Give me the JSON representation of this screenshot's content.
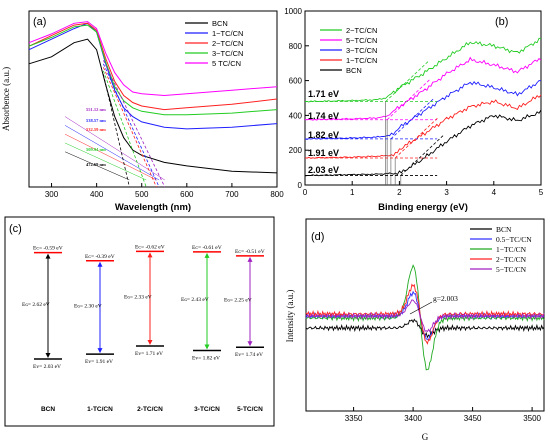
{
  "panels": {
    "a": {
      "label": "(a)",
      "xlabel": "Wavelength (nm)",
      "ylabel": "Absorbence (a.u.)",
      "x_ticks": [
        "300",
        "400",
        "500",
        "600",
        "700",
        "800"
      ],
      "legend": [
        "BCN",
        "1−TC/CN",
        "2−TC/CN",
        "3−TC/CN",
        "5  TC/CN"
      ],
      "annotations": [
        "551.12 nm",
        "538.57 nm",
        "532.59 nm",
        "509.94 nm",
        "472.69 nm"
      ]
    },
    "b": {
      "label": "(b)",
      "xlabel": "Binding energy (eV)",
      "x_ticks": [
        "0",
        "1",
        "2",
        "3",
        "4",
        "5"
      ],
      "y_ticks": [
        "0",
        "200",
        "400",
        "600",
        "800",
        "1000"
      ],
      "legend": [
        "2−TC/CN",
        "5−TC/CN",
        "3−TC/CN",
        "1−TC/CN",
        "BCN"
      ],
      "annotations": [
        "1.71 eV",
        "1.74 eV",
        "1.82 eV",
        "1.91 eV",
        "2.03 eV"
      ]
    },
    "c": {
      "label": "(c)",
      "samples": [
        {
          "name": "BCN",
          "ec": "Eᴄ= -0.59 eV",
          "eg": "Eɢ= 2.62 eV",
          "ev": "Eᴠ= 2.03 eV"
        },
        {
          "name": "1-TC/CN",
          "ec": "Eᴄ= -0.39 eV",
          "eg": "Eɢ= 2.30 eV",
          "ev": "Eᴠ= 1.91 eV"
        },
        {
          "name": "2-TC/CN",
          "ec": "Eᴄ= -0.62 eV",
          "eg": "Eɢ= 2.33 eV",
          "ev": "Eᴠ= 1.71 eV"
        },
        {
          "name": "3-TC/CN",
          "ec": "Eᴄ= -0.61 eV",
          "eg": "Eɢ= 2.43 eV",
          "ev": "Eᴠ= 1.82 eV"
        },
        {
          "name": "5-TC/CN",
          "ec": "Eᴄ= -0.51 eV",
          "eg": "Eɢ= 2.25 eV",
          "ev": "Eᴠ= 1.74 eV"
        }
      ]
    },
    "d": {
      "label": "(d)",
      "xlabel": "G",
      "ylabel": "Intensity (a.u.)",
      "x_ticks": [
        "3350",
        "3400",
        "3450",
        "3500"
      ],
      "legend": [
        "BCN",
        "0.5−TC/CN",
        "1−TC/CN",
        "2−TC/CN",
        "5−TC/CN"
      ],
      "annotation": "g=2.003"
    }
  },
  "colors": {
    "bcn": "#000000",
    "tc1": "#1f1fff",
    "tc2": "#ff2020",
    "tc3": "#22cc22",
    "tc5": "#a020c0",
    "tc5pink": "#ff00ff",
    "tc05": "#3030ff",
    "tc1g": "#22aa22"
  },
  "chart_data": [
    {
      "panel": "a",
      "type": "line",
      "xlabel": "Wavelength (nm)",
      "ylabel": "Absorbence (a.u.)",
      "xlim": [
        250,
        800
      ],
      "series": [
        {
          "name": "BCN",
          "x": [
            250,
            300,
            350,
            380,
            400,
            420,
            440,
            460,
            480,
            500,
            550,
            600,
            700,
            800
          ],
          "y": [
            0.7,
            0.74,
            0.82,
            0.84,
            0.78,
            0.58,
            0.4,
            0.28,
            0.21,
            0.18,
            0.14,
            0.12,
            0.09,
            0.08
          ]
        },
        {
          "name": "1−TC/CN",
          "x": [
            250,
            300,
            350,
            380,
            400,
            420,
            440,
            460,
            480,
            500,
            550,
            600,
            700,
            800
          ],
          "y": [
            0.78,
            0.84,
            0.9,
            0.93,
            0.88,
            0.7,
            0.55,
            0.45,
            0.4,
            0.37,
            0.34,
            0.33,
            0.34,
            0.36
          ]
        },
        {
          "name": "2−TC/CN",
          "x": [
            250,
            300,
            350,
            380,
            400,
            420,
            440,
            460,
            480,
            500,
            550,
            600,
            700,
            800
          ],
          "y": [
            0.8,
            0.86,
            0.92,
            0.93,
            0.89,
            0.73,
            0.6,
            0.52,
            0.48,
            0.46,
            0.44,
            0.45,
            0.47,
            0.5
          ]
        },
        {
          "name": "3−TC/CN",
          "x": [
            250,
            300,
            350,
            380,
            400,
            420,
            440,
            460,
            480,
            500,
            550,
            600,
            700,
            800
          ],
          "y": [
            0.8,
            0.85,
            0.91,
            0.92,
            0.88,
            0.71,
            0.57,
            0.49,
            0.45,
            0.43,
            0.41,
            0.41,
            0.42,
            0.44
          ]
        },
        {
          "name": "5  TC/CN",
          "x": [
            250,
            300,
            350,
            380,
            400,
            420,
            440,
            460,
            480,
            500,
            550,
            600,
            700,
            800
          ],
          "y": [
            0.82,
            0.87,
            0.93,
            0.94,
            0.9,
            0.76,
            0.65,
            0.58,
            0.54,
            0.53,
            0.52,
            0.53,
            0.55,
            0.57
          ]
        }
      ],
      "edge_values_nm": [
        551.12,
        538.57,
        532.59,
        509.94,
        472.69
      ]
    },
    {
      "panel": "b",
      "type": "line",
      "xlabel": "Binding energy (eV)",
      "xlim": [
        0,
        5
      ],
      "ylim": [
        0,
        1000
      ],
      "series": [
        {
          "name": "2−TC/CN",
          "x": [
            0,
            0.5,
            1,
            1.5,
            1.71,
            2,
            2.5,
            3,
            3.5,
            4,
            4.5,
            5
          ],
          "y": [
            480,
            482,
            485,
            490,
            500,
            560,
            640,
            730,
            820,
            800,
            760,
            840
          ]
        },
        {
          "name": "5−TC/CN",
          "x": [
            0,
            0.5,
            1,
            1.5,
            1.74,
            2,
            2.5,
            3,
            3.5,
            4,
            4.5,
            5
          ],
          "y": [
            375,
            378,
            380,
            385,
            395,
            450,
            540,
            640,
            720,
            690,
            650,
            730
          ]
        },
        {
          "name": "3−TC/CN",
          "x": [
            0,
            0.5,
            1,
            1.5,
            1.82,
            2,
            2.5,
            3,
            3.5,
            4,
            4.5,
            5
          ],
          "y": [
            265,
            268,
            270,
            275,
            285,
            330,
            420,
            510,
            590,
            560,
            520,
            600
          ]
        },
        {
          "name": "1−TC/CN",
          "x": [
            0,
            0.5,
            1,
            1.5,
            1.91,
            2,
            2.5,
            3,
            3.5,
            4,
            4.5,
            5
          ],
          "y": [
            155,
            158,
            160,
            165,
            172,
            205,
            290,
            380,
            450,
            480,
            440,
            520
          ]
        },
        {
          "name": "BCN",
          "x": [
            0,
            0.5,
            1,
            1.5,
            2.03,
            2.5,
            3,
            3.5,
            4,
            4.5,
            5
          ],
          "y": [
            55,
            57,
            60,
            62,
            70,
            150,
            250,
            340,
            400,
            370,
            420
          ]
        }
      ],
      "vbm_eV": [
        1.71,
        1.74,
        1.82,
        1.91,
        2.03
      ]
    },
    {
      "panel": "c",
      "type": "bar",
      "categories": [
        "BCN",
        "1-TC/CN",
        "2-TC/CN",
        "3-TC/CN",
        "5-TC/CN"
      ],
      "Ec": [
        -0.59,
        -0.39,
        -0.62,
        -0.61,
        -0.51
      ],
      "Ev": [
        2.03,
        1.91,
        1.71,
        1.82,
        1.74
      ],
      "Eg": [
        2.62,
        2.3,
        2.33,
        2.43,
        2.25
      ]
    },
    {
      "panel": "d",
      "type": "line",
      "xlabel": "G",
      "ylabel": "Intensity (a.u.)",
      "xlim": [
        3310,
        3510
      ],
      "g_value": 2.003,
      "series": [
        {
          "name": "BCN",
          "peak_amplitude": 0.15
        },
        {
          "name": "0.5−TC/CN",
          "peak_amplitude": 0.45
        },
        {
          "name": "1−TC/CN",
          "peak_amplitude": 1.0
        },
        {
          "name": "2−TC/CN",
          "peak_amplitude": 0.55
        },
        {
          "name": "5−TC/CN",
          "peak_amplitude": 0.3
        }
      ]
    }
  ]
}
